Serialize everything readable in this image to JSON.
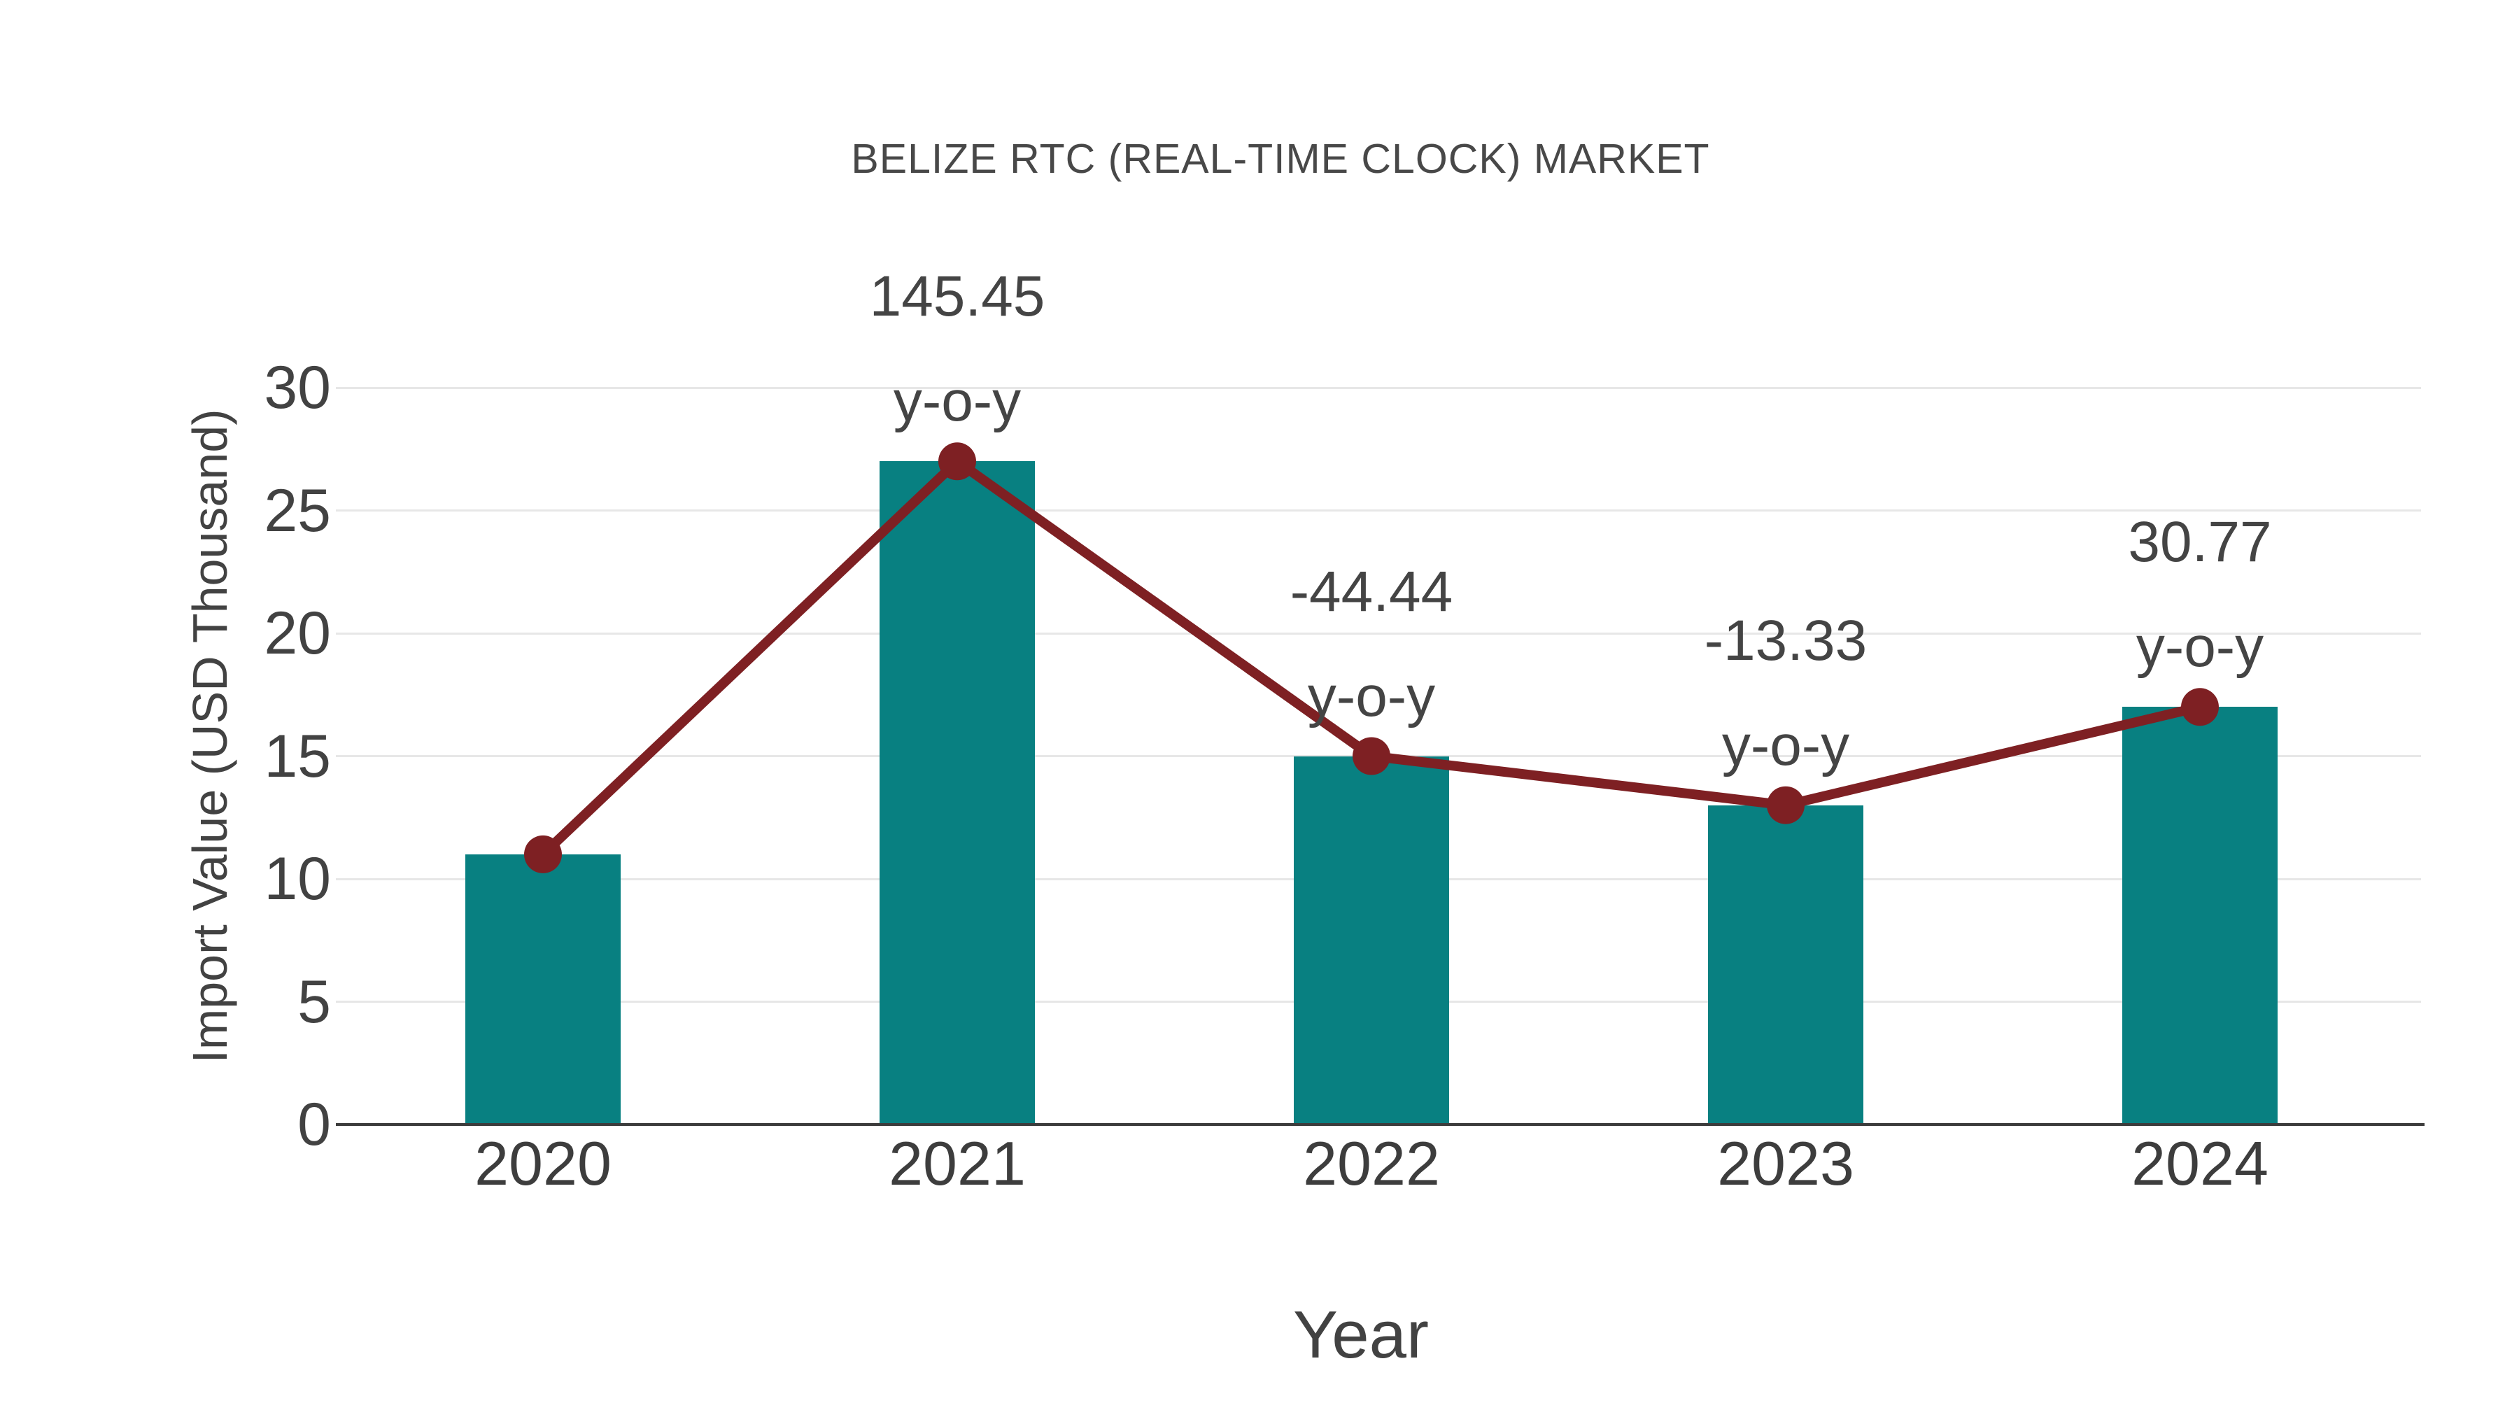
{
  "chart_data": {
    "type": "bar",
    "overlay": "line",
    "title": "BELIZE RTC (REAL-TIME CLOCK) MARKET",
    "xlabel": "Year",
    "ylabel": "Import Value (USD Thousand)",
    "categories": [
      "2020",
      "2021",
      "2022",
      "2023",
      "2024"
    ],
    "series": [
      {
        "type": "bar",
        "values": [
          11,
          27,
          15,
          13,
          17
        ]
      },
      {
        "type": "line",
        "values": [
          11,
          27,
          15,
          13,
          17
        ]
      }
    ],
    "yticks": [
      0,
      5,
      10,
      15,
      20,
      25,
      30
    ],
    "ylim": [
      0,
      30
    ],
    "grid": true,
    "legend": false,
    "annotations": [
      {
        "category": "2021",
        "lines": [
          "145.45",
          "y-o-y"
        ]
      },
      {
        "category": "2022",
        "lines": [
          "-44.44",
          "y-o-y"
        ]
      },
      {
        "category": "2023",
        "lines": [
          "-13.33",
          "y-o-y"
        ]
      },
      {
        "category": "2024",
        "lines": [
          "30.77",
          "y-o-y"
        ]
      }
    ],
    "colors": {
      "bar": "#088081",
      "line": "#7e2023",
      "grid": "#e7e7e7",
      "axis": "#3c3c3c",
      "text": "#444444"
    }
  }
}
